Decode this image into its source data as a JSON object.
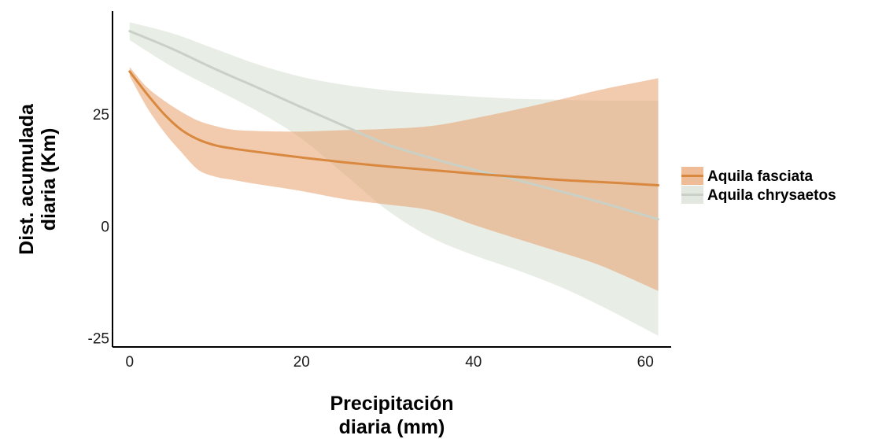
{
  "chart_data": {
    "type": "line",
    "title": "",
    "xlabel": [
      "Precipitación",
      "diaria (mm)"
    ],
    "ylabel": [
      "Dist. acumulada",
      "diaria (Km)"
    ],
    "xlim": [
      -2,
      63
    ],
    "ylim": [
      -27,
      48
    ],
    "xticks": [
      0,
      20,
      40,
      60
    ],
    "yticks": [
      -25,
      0,
      25
    ],
    "xtick_labels": [
      "0",
      "20",
      "40",
      "60"
    ],
    "ytick_labels": [
      "-25",
      "0",
      "25"
    ],
    "grid": false,
    "legend_position": "right",
    "series": [
      {
        "name": "Aquila fasciata",
        "color": "#d9893f",
        "band_color": "#e8a06c",
        "x": [
          0,
          2,
          4,
          6,
          8,
          10,
          12,
          15,
          20,
          25,
          30,
          35,
          40,
          45,
          50,
          55,
          61.5
        ],
        "y": [
          34.5,
          29.5,
          25,
          21.5,
          19.3,
          18,
          17.3,
          16.5,
          15.3,
          14.2,
          13.3,
          12.5,
          11.7,
          11,
          10.3,
          9.8,
          9.1
        ],
        "lower": [
          33.5,
          26.5,
          21,
          16.5,
          12.5,
          11,
          10.3,
          9.3,
          7.8,
          6,
          4.8,
          3.5,
          0.3,
          -2.8,
          -5.8,
          -9,
          -14.5
        ],
        "upper": [
          35.5,
          31,
          28,
          25.5,
          23.5,
          22.3,
          21.5,
          21.2,
          21.1,
          21.4,
          21.7,
          22.3,
          24,
          26,
          28.2,
          30.5,
          33
        ]
      },
      {
        "name": "Aquila chrysaetos",
        "color": "#c9d1c7",
        "band_color": "#d6ded2",
        "x": [
          0,
          5,
          10,
          15,
          20,
          25,
          30,
          35,
          40,
          45,
          50,
          55,
          61.5
        ],
        "y": [
          43.5,
          39.5,
          35,
          30.8,
          26.5,
          22.3,
          18.2,
          15.2,
          12.6,
          10.3,
          7.8,
          5.2,
          1.5
        ],
        "lower": [
          41.5,
          35.5,
          30.5,
          25.5,
          19.5,
          11.5,
          3.5,
          -2.5,
          -6.5,
          -9.8,
          -13.5,
          -18,
          -24.5
        ],
        "upper": [
          45.5,
          43,
          39.5,
          36,
          33.3,
          31.5,
          30.3,
          29.5,
          28.9,
          28.4,
          28.2,
          28,
          28
        ]
      }
    ]
  }
}
